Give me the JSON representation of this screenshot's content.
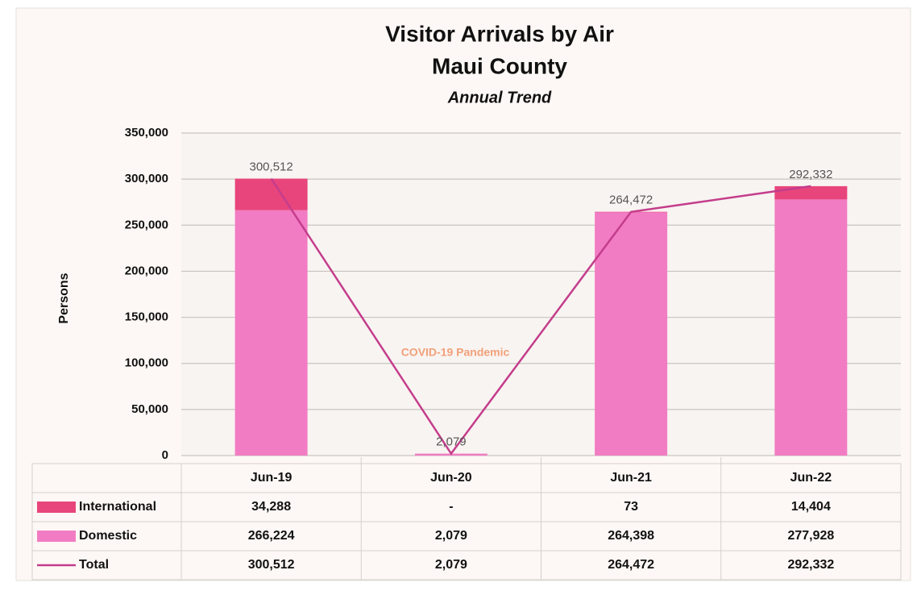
{
  "chart_data": {
    "type": "bar",
    "title": "Visitor Arrivals by Air",
    "title_line2": "Maui County",
    "subtitle": "Annual Trend",
    "y_label": "Persons",
    "annotation": "COVID-19 Pandemic",
    "categories": [
      "Jun-19",
      "Jun-20",
      "Jun-21",
      "Jun-22"
    ],
    "stacked": true,
    "series": [
      {
        "name": "International",
        "type": "bar",
        "color": "#e8457c",
        "values": [
          34288,
          null,
          73,
          14404
        ],
        "value_labels": [
          "34,288",
          "-",
          "73",
          "14,404"
        ]
      },
      {
        "name": "Domestic",
        "type": "bar",
        "color": "#f27cc3",
        "values": [
          266224,
          2079,
          264398,
          277928
        ],
        "value_labels": [
          "266,224",
          "2,079",
          "264,398",
          "277,928"
        ]
      },
      {
        "name": "Total",
        "type": "line",
        "color": "#c43d8c",
        "values": [
          300512,
          2079,
          264472,
          292332
        ],
        "value_labels": [
          "300,512",
          "2,079",
          "264,472",
          "292,332"
        ]
      }
    ],
    "ylim": [
      0,
      350000
    ],
    "yticks": [
      0,
      {
        "value": 50000,
        "label": "50,000"
      },
      {
        "value": 100000,
        "label": "100,000"
      },
      {
        "value": 150000,
        "label": "150,000"
      },
      {
        "value": 200000,
        "label": "200,000"
      },
      {
        "value": 250000,
        "label": "250,000"
      },
      {
        "value": 300000,
        "label": "300,000"
      },
      {
        "value": 350000,
        "label": "350,000"
      }
    ],
    "grid": true
  }
}
